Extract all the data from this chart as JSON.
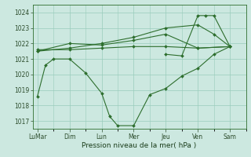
{
  "xlabel": "Pression niveau de la mer( hPa )",
  "bg_color": "#cce8e0",
  "grid_color": "#99ccbb",
  "line_color": "#2d6e2d",
  "ylim": [
    1016.5,
    1024.5
  ],
  "yticks": [
    1017,
    1018,
    1019,
    1020,
    1021,
    1022,
    1023,
    1024
  ],
  "x_labels": [
    "LuMar",
    "Dim",
    "Lun",
    "Mer",
    "Jeu",
    "Ven",
    "Sam"
  ],
  "x_tick_positions": [
    0,
    2,
    4,
    6,
    8,
    10,
    12
  ],
  "xlim": [
    -0.3,
    13.0
  ],
  "lines": [
    {
      "x": [
        0,
        0.5,
        1,
        2,
        3,
        4,
        4.5,
        5,
        6,
        7,
        8,
        9,
        10,
        11,
        12
      ],
      "y": [
        1018.6,
        1020.6,
        1021.0,
        1021.0,
        1020.1,
        1018.8,
        1017.3,
        1016.7,
        1016.7,
        1018.7,
        1019.1,
        1019.9,
        1020.4,
        1021.3,
        1021.8
      ]
    },
    {
      "x": [
        0,
        2,
        4,
        6,
        8,
        10,
        12
      ],
      "y": [
        1021.6,
        1021.6,
        1021.7,
        1021.8,
        1021.8,
        1021.7,
        1021.8
      ]
    },
    {
      "x": [
        0,
        2,
        4,
        6,
        8,
        10,
        12
      ],
      "y": [
        1021.5,
        1022.0,
        1021.9,
        1022.2,
        1022.6,
        1021.7,
        1021.8
      ]
    },
    {
      "x": [
        0,
        2,
        4,
        6,
        8,
        10,
        11,
        12
      ],
      "y": [
        1021.5,
        1021.7,
        1022.0,
        1022.4,
        1023.0,
        1023.2,
        1022.6,
        1021.8
      ]
    },
    {
      "x": [
        8,
        9,
        10,
        10.5,
        11,
        12
      ],
      "y": [
        1021.3,
        1021.2,
        1023.8,
        1023.8,
        1023.8,
        1021.8
      ]
    }
  ]
}
